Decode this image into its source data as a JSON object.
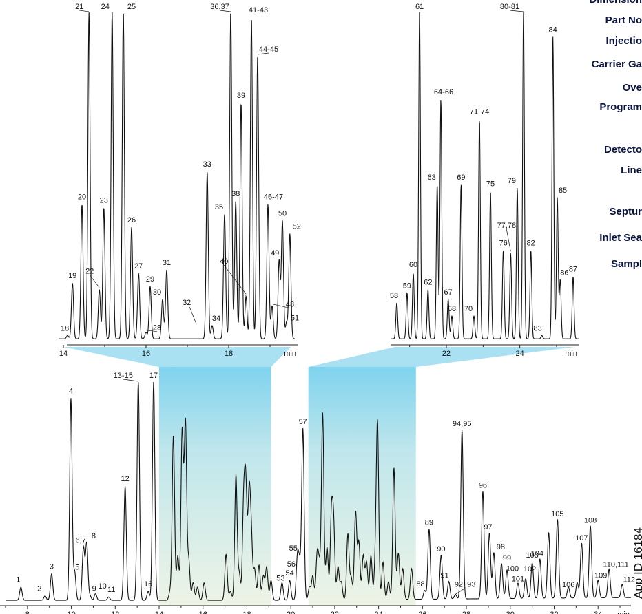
{
  "side_labels": [
    "Dimension",
    "Part No",
    "Injectio",
    "Carrier Ga",
    "Ove",
    "Program",
    "Detecto",
    "Line",
    "Septur",
    "Inlet Sea",
    "Sampl"
  ],
  "app_id": "App ID 16184",
  "colors": {
    "trace": "#111111",
    "band_top": "#7fd3ee",
    "band_bottom": "#eef4e6",
    "label": "#0b1540"
  },
  "chart_data": [
    {
      "id": "main",
      "type": "line",
      "xlabel": "min",
      "xlim": [
        7.0,
        35.5
      ],
      "ylim": [
        0,
        1.0
      ],
      "ticks": [
        8,
        10,
        12,
        14,
        16,
        18,
        20,
        22,
        24,
        26,
        28,
        30,
        32,
        34
      ],
      "highlight_ranges": [
        [
          14.0,
          19.1
        ],
        [
          20.8,
          25.7
        ]
      ],
      "peaks": [
        {
          "x": 7.7,
          "y": 0.06,
          "label": "1"
        },
        {
          "x": 8.8,
          "y": 0.02,
          "label": "2"
        },
        {
          "x": 9.1,
          "y": 0.12,
          "label": "3"
        },
        {
          "x": 9.98,
          "y": 0.92,
          "label": "4"
        },
        {
          "x": 10.15,
          "y": 0.13,
          "label": "5"
        },
        {
          "x": 10.55,
          "y": 0.24,
          "label": "6,7"
        },
        {
          "x": 10.7,
          "y": 0.26,
          "label": "8"
        },
        {
          "x": 10.85,
          "y": 0.02,
          "label": "9"
        },
        {
          "x": 11.1,
          "y": 0.03,
          "label": "10"
        },
        {
          "x": 11.7,
          "y": 0.015,
          "label": "11"
        },
        {
          "x": 12.45,
          "y": 0.52,
          "label": "12"
        },
        {
          "x": 13.05,
          "y": 1.0,
          "label": "13-15"
        },
        {
          "x": 13.5,
          "y": 0.04,
          "label": "16"
        },
        {
          "x": 13.75,
          "y": 1.0,
          "label": "17"
        },
        {
          "x": 14.5,
          "y": 0.04,
          "label": ""
        },
        {
          "x": 14.65,
          "y": 0.75,
          "label": ""
        },
        {
          "x": 14.85,
          "y": 0.2,
          "label": ""
        },
        {
          "x": 15.05,
          "y": 0.77,
          "label": ""
        },
        {
          "x": 15.2,
          "y": 0.81,
          "label": ""
        },
        {
          "x": 15.35,
          "y": 0.18,
          "label": ""
        },
        {
          "x": 15.55,
          "y": 0.08,
          "label": ""
        },
        {
          "x": 15.75,
          "y": 0.06,
          "label": ""
        },
        {
          "x": 16.05,
          "y": 0.08,
          "label": ""
        },
        {
          "x": 17.05,
          "y": 0.21,
          "label": ""
        },
        {
          "x": 17.25,
          "y": 0.04,
          "label": ""
        },
        {
          "x": 17.5,
          "y": 0.57,
          "label": ""
        },
        {
          "x": 17.65,
          "y": 0.12,
          "label": ""
        },
        {
          "x": 17.85,
          "y": 0.42,
          "label": ""
        },
        {
          "x": 17.95,
          "y": 0.5,
          "label": ""
        },
        {
          "x": 18.1,
          "y": 0.47,
          "label": ""
        },
        {
          "x": 18.2,
          "y": 0.28,
          "label": ""
        },
        {
          "x": 18.35,
          "y": 0.14,
          "label": ""
        },
        {
          "x": 18.55,
          "y": 0.16,
          "label": ""
        },
        {
          "x": 18.75,
          "y": 0.11,
          "label": ""
        },
        {
          "x": 18.9,
          "y": 0.15,
          "label": ""
        },
        {
          "x": 19.1,
          "y": 0.09,
          "label": ""
        },
        {
          "x": 19.6,
          "y": 0.08,
          "label": "53"
        },
        {
          "x": 19.95,
          "y": 0.09,
          "label": "54"
        },
        {
          "x": 20.3,
          "y": 0.19,
          "label": "55"
        },
        {
          "x": 20.4,
          "y": 0.15,
          "label": "56"
        },
        {
          "x": 20.55,
          "y": 0.78,
          "label": "57"
        },
        {
          "x": 20.85,
          "y": 0.06,
          "label": ""
        },
        {
          "x": 21.0,
          "y": 0.11,
          "label": ""
        },
        {
          "x": 21.2,
          "y": 0.2,
          "label": ""
        },
        {
          "x": 21.3,
          "y": 0.14,
          "label": ""
        },
        {
          "x": 21.45,
          "y": 0.85,
          "label": ""
        },
        {
          "x": 21.65,
          "y": 0.24,
          "label": ""
        },
        {
          "x": 21.85,
          "y": 0.38,
          "label": ""
        },
        {
          "x": 21.95,
          "y": 0.33,
          "label": ""
        },
        {
          "x": 22.15,
          "y": 0.15,
          "label": ""
        },
        {
          "x": 22.3,
          "y": 0.08,
          "label": ""
        },
        {
          "x": 22.6,
          "y": 0.3,
          "label": ""
        },
        {
          "x": 22.75,
          "y": 0.1,
          "label": ""
        },
        {
          "x": 22.95,
          "y": 0.4,
          "label": ""
        },
        {
          "x": 23.1,
          "y": 0.26,
          "label": ""
        },
        {
          "x": 23.3,
          "y": 0.2,
          "label": ""
        },
        {
          "x": 23.45,
          "y": 0.17,
          "label": ""
        },
        {
          "x": 23.65,
          "y": 0.2,
          "label": ""
        },
        {
          "x": 23.85,
          "y": 0.15,
          "label": ""
        },
        {
          "x": 23.95,
          "y": 0.79,
          "label": ""
        },
        {
          "x": 24.2,
          "y": 0.17,
          "label": ""
        },
        {
          "x": 24.45,
          "y": 0.08,
          "label": ""
        },
        {
          "x": 24.7,
          "y": 0.6,
          "label": ""
        },
        {
          "x": 24.9,
          "y": 0.21,
          "label": ""
        },
        {
          "x": 25.1,
          "y": 0.14,
          "label": ""
        },
        {
          "x": 25.5,
          "y": 0.14,
          "label": ""
        },
        {
          "x": 26.1,
          "y": 0.04,
          "label": "88"
        },
        {
          "x": 26.3,
          "y": 0.32,
          "label": "89"
        },
        {
          "x": 26.85,
          "y": 0.2,
          "label": "90"
        },
        {
          "x": 27.2,
          "y": 0.08,
          "label": "91"
        },
        {
          "x": 27.5,
          "y": 0.02,
          "label": "92, 93"
        },
        {
          "x": 27.8,
          "y": 0.77,
          "label": "94,95"
        },
        {
          "x": 28.75,
          "y": 0.49,
          "label": "96"
        },
        {
          "x": 29.05,
          "y": 0.3,
          "label": "97"
        },
        {
          "x": 29.25,
          "y": 0.21,
          "label": "98"
        },
        {
          "x": 29.6,
          "y": 0.16,
          "label": "99"
        },
        {
          "x": 29.85,
          "y": 0.13,
          "label": "100"
        },
        {
          "x": 30.35,
          "y": 0.07,
          "label": "101"
        },
        {
          "x": 30.7,
          "y": 0.09,
          "label": "102"
        },
        {
          "x": 31.0,
          "y": 0.16,
          "label": "103"
        },
        {
          "x": 31.35,
          "y": 0.18,
          "label": "104"
        },
        {
          "x": 31.75,
          "y": 0.3,
          "label": ""
        },
        {
          "x": 32.15,
          "y": 0.36,
          "label": "105"
        },
        {
          "x": 32.65,
          "y": 0.05,
          "label": "106"
        },
        {
          "x": 33.05,
          "y": 0.07,
          "label": ""
        },
        {
          "x": 33.25,
          "y": 0.25,
          "label": "107"
        },
        {
          "x": 33.65,
          "y": 0.33,
          "label": "108"
        },
        {
          "x": 34.0,
          "y": 0.08,
          "label": "109"
        },
        {
          "x": 34.5,
          "y": 0.13,
          "label": "110,111"
        },
        {
          "x": 35.1,
          "y": 0.06,
          "label": "112"
        }
      ]
    },
    {
      "id": "inset-left",
      "type": "line",
      "xlabel": "min",
      "xlim": [
        13.9,
        19.6
      ],
      "ylim": [
        0,
        1.0
      ],
      "ticks": [
        14,
        16,
        18
      ],
      "peaks": [
        {
          "x": 14.1,
          "y": 0.01,
          "label": "18"
        },
        {
          "x": 14.22,
          "y": 0.17,
          "label": "19"
        },
        {
          "x": 14.45,
          "y": 0.41,
          "label": "20"
        },
        {
          "x": 14.62,
          "y": 1.0,
          "label": "21"
        },
        {
          "x": 14.87,
          "y": 0.15,
          "label": "22"
        },
        {
          "x": 14.98,
          "y": 0.4,
          "label": "23"
        },
        {
          "x": 15.18,
          "y": 1.0,
          "label": "24"
        },
        {
          "x": 15.45,
          "y": 1.0,
          "label": "25"
        },
        {
          "x": 15.65,
          "y": 0.34,
          "label": "26"
        },
        {
          "x": 15.82,
          "y": 0.2,
          "label": "27"
        },
        {
          "x": 16.0,
          "y": 0.02,
          "label": "28"
        },
        {
          "x": 16.1,
          "y": 0.16,
          "label": "29"
        },
        {
          "x": 16.4,
          "y": 0.12,
          "label": "30"
        },
        {
          "x": 16.5,
          "y": 0.21,
          "label": "31"
        },
        {
          "x": 17.48,
          "y": 0.51,
          "label": "33"
        },
        {
          "x": 17.6,
          "y": 0.04,
          "label": "34"
        },
        {
          "x": 17.9,
          "y": 0.38,
          "label": "35"
        },
        {
          "x": 18.05,
          "y": 1.0,
          "label": "36,37"
        },
        {
          "x": 18.17,
          "y": 0.42,
          "label": "38"
        },
        {
          "x": 18.3,
          "y": 0.72,
          "label": "39"
        },
        {
          "x": 18.42,
          "y": 0.13,
          "label": "40"
        },
        {
          "x": 18.55,
          "y": 0.98,
          "label": "41-43"
        },
        {
          "x": 18.7,
          "y": 0.86,
          "label": "44-45"
        },
        {
          "x": 18.95,
          "y": 0.41,
          "label": "46-47"
        },
        {
          "x": 19.05,
          "y": 0.1,
          "label": "48"
        },
        {
          "x": 19.22,
          "y": 0.24,
          "label": "49"
        },
        {
          "x": 19.3,
          "y": 0.36,
          "label": "50"
        },
        {
          "x": 19.4,
          "y": 0.05,
          "label": "51"
        },
        {
          "x": 19.48,
          "y": 0.32,
          "label": "52"
        }
      ],
      "annotations": [
        {
          "label": "32"
        }
      ]
    },
    {
      "id": "inset-right",
      "type": "line",
      "xlabel": "min",
      "xlim": [
        20.5,
        25.6
      ],
      "ylim": [
        0,
        1.0
      ],
      "ticks": [
        22,
        24
      ],
      "peaks": [
        {
          "x": 20.65,
          "y": 0.11,
          "label": "58"
        },
        {
          "x": 20.93,
          "y": 0.14,
          "label": "59"
        },
        {
          "x": 21.1,
          "y": 0.2,
          "label": "60"
        },
        {
          "x": 21.27,
          "y": 1.0,
          "label": "61"
        },
        {
          "x": 21.5,
          "y": 0.15,
          "label": "62"
        },
        {
          "x": 21.75,
          "y": 0.47,
          "label": "63"
        },
        {
          "x": 21.85,
          "y": 0.73,
          "label": "64-66"
        },
        {
          "x": 22.05,
          "y": 0.12,
          "label": "67"
        },
        {
          "x": 22.15,
          "y": 0.07,
          "label": "68"
        },
        {
          "x": 22.4,
          "y": 0.47,
          "label": "69"
        },
        {
          "x": 22.75,
          "y": 0.07,
          "label": "70"
        },
        {
          "x": 22.9,
          "y": 0.67,
          "label": "71-74"
        },
        {
          "x": 23.2,
          "y": 0.45,
          "label": "75"
        },
        {
          "x": 23.55,
          "y": 0.27,
          "label": "76"
        },
        {
          "x": 23.75,
          "y": 0.26,
          "label": "77,78"
        },
        {
          "x": 23.93,
          "y": 0.46,
          "label": "79"
        },
        {
          "x": 24.1,
          "y": 1.0,
          "label": "80-81"
        },
        {
          "x": 24.3,
          "y": 0.27,
          "label": "82"
        },
        {
          "x": 24.6,
          "y": 0.01,
          "label": "83"
        },
        {
          "x": 24.9,
          "y": 0.92,
          "label": "84"
        },
        {
          "x": 25.02,
          "y": 0.43,
          "label": "85"
        },
        {
          "x": 25.1,
          "y": 0.18,
          "label": "86"
        },
        {
          "x": 25.45,
          "y": 0.19,
          "label": "87"
        }
      ]
    }
  ]
}
